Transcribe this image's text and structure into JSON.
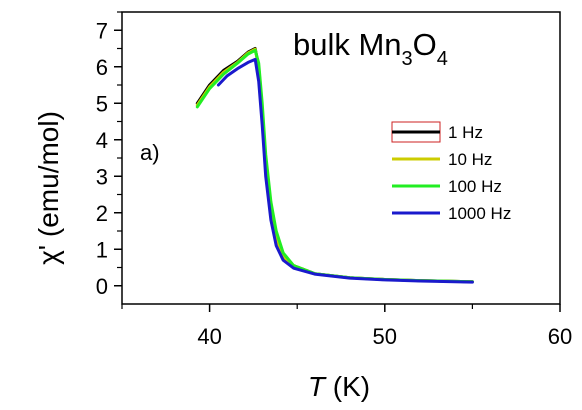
{
  "chart_data": {
    "type": "line",
    "title": {
      "main": "bulk Mn",
      "sub1": "3",
      "mid": "O",
      "sub2": "4"
    },
    "annotation": "a)",
    "xlabel": {
      "italic": "T",
      "rest": " (K)"
    },
    "ylabel": "χ' (emu/mol)",
    "xlim": [
      35,
      60
    ],
    "ylim": [
      -0.5,
      7.5
    ],
    "xticks": [
      40,
      50,
      60
    ],
    "xminor": [
      35,
      45,
      55
    ],
    "yticks": [
      0,
      1,
      2,
      3,
      4,
      5,
      6,
      7
    ],
    "yminor": [
      0.5,
      1.5,
      2.5,
      3.5,
      4.5,
      5.5,
      6.5,
      7.5
    ],
    "grid": false,
    "legend_position": "right",
    "series": [
      {
        "name": "1 Hz",
        "color": "#000000",
        "x": [
          39.3,
          40.0,
          40.8,
          41.6,
          42.2,
          42.6,
          42.8,
          43.0,
          43.2,
          43.5,
          43.8,
          44.2,
          44.8,
          46,
          48,
          50,
          52,
          54,
          55
        ],
        "y": [
          5.0,
          5.5,
          5.9,
          6.15,
          6.4,
          6.5,
          6.0,
          4.8,
          3.4,
          2.1,
          1.3,
          0.8,
          0.55,
          0.33,
          0.22,
          0.17,
          0.14,
          0.12,
          0.11
        ]
      },
      {
        "name": "10 Hz",
        "color": "#cccc00",
        "x": [
          39.3,
          40.0,
          40.8,
          41.6,
          42.2,
          42.6,
          42.8,
          43.0,
          43.2,
          43.5,
          43.8,
          44.2,
          44.8,
          46,
          48,
          50,
          52,
          54,
          55
        ],
        "y": [
          4.95,
          5.45,
          5.85,
          6.12,
          6.38,
          6.48,
          6.0,
          4.8,
          3.4,
          2.1,
          1.3,
          0.8,
          0.55,
          0.33,
          0.22,
          0.17,
          0.14,
          0.12,
          0.11
        ]
      },
      {
        "name": "100 Hz",
        "color": "#22ee22",
        "x": [
          39.3,
          40.0,
          40.8,
          41.6,
          42.2,
          42.6,
          42.8,
          43.0,
          43.2,
          43.5,
          43.8,
          44.2,
          44.8,
          46,
          48,
          50,
          52,
          54,
          55
        ],
        "y": [
          4.9,
          5.4,
          5.8,
          6.1,
          6.35,
          6.45,
          6.1,
          5.0,
          3.6,
          2.3,
          1.5,
          0.9,
          0.55,
          0.33,
          0.22,
          0.17,
          0.14,
          0.12,
          0.11
        ]
      },
      {
        "name": "1000 Hz",
        "color": "#1a1acc",
        "x": [
          40.5,
          41.0,
          41.6,
          42.2,
          42.6,
          42.8,
          43.0,
          43.2,
          43.5,
          43.8,
          44.2,
          44.8,
          46,
          48,
          50,
          52,
          54,
          55
        ],
        "y": [
          5.5,
          5.75,
          5.95,
          6.12,
          6.2,
          5.6,
          4.4,
          3.0,
          1.8,
          1.1,
          0.7,
          0.48,
          0.32,
          0.21,
          0.16,
          0.13,
          0.11,
          0.1
        ]
      }
    ]
  }
}
